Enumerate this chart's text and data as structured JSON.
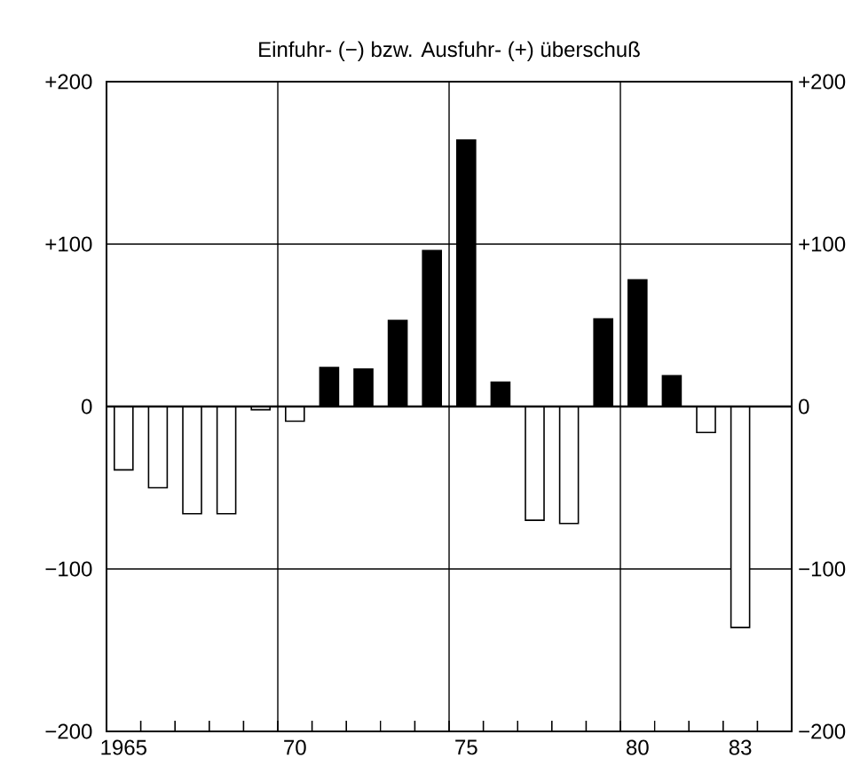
{
  "chart_data": {
    "type": "bar",
    "title": "Einfuhr- (−) bzw. Ausfuhr- (+) überschuß",
    "x": [
      1965,
      1966,
      1967,
      1968,
      1969,
      1970,
      1971,
      1972,
      1973,
      1974,
      1975,
      1976,
      1977,
      1978,
      1979,
      1980,
      1981,
      1982,
      1983
    ],
    "values": [
      -39,
      -50,
      -66,
      -66,
      -2,
      -9,
      24,
      23,
      53,
      96,
      164,
      15,
      -70,
      -72,
      54,
      78,
      19,
      -16,
      -136
    ],
    "colors": [
      "#ffffff",
      "#ffffff",
      "#ffffff",
      "#ffffff",
      "#ffffff",
      "#ffffff",
      "#000000",
      "#000000",
      "#000000",
      "#000000",
      "#000000",
      "#000000",
      "#ffffff",
      "#ffffff",
      "#000000",
      "#000000",
      "#000000",
      "#ffffff",
      "#ffffff"
    ],
    "xlim": [
      1964.5,
      1984.5
    ],
    "xticks": [
      1965,
      {
        "value": 1970,
        "label": "70"
      },
      {
        "value": 1975,
        "label": "75"
      },
      {
        "value": 1980,
        "label": "80"
      },
      {
        "value": 1983,
        "label": "83"
      },
      {
        "value": 1965.5,
        "label": null
      },
      {
        "value": 1966.5,
        "label": null
      },
      {
        "value": 1967.5,
        "label": null
      },
      {
        "value": 1968.5,
        "label": null
      },
      {
        "value": 1969.5,
        "label": null
      },
      {
        "value": 1970.5,
        "label": null
      },
      {
        "value": 1971.5,
        "label": null
      },
      {
        "value": 1972.5,
        "label": null
      },
      {
        "value": 1973.5,
        "label": null
      },
      {
        "value": 1974.5,
        "label": null
      },
      {
        "value": 1975.5,
        "label": null
      },
      {
        "value": 1976.5,
        "label": null
      },
      {
        "value": 1977.5,
        "label": null
      },
      {
        "value": 1978.5,
        "label": null
      },
      {
        "value": 1979.5,
        "label": null
      },
      {
        "value": 1980.5,
        "label": null
      },
      {
        "value": 1981.5,
        "label": null
      },
      {
        "value": 1982.5,
        "label": null
      },
      {
        "value": 1983.5,
        "label": null
      }
    ],
    "ylim": [
      -200,
      200
    ],
    "yticks": [
      {
        "value": -200,
        "label": "−200"
      },
      {
        "value": -100,
        "label": "−100"
      },
      0,
      {
        "value": 100,
        "label": "+100"
      },
      {
        "value": 200,
        "label": "+200"
      }
    ],
    "y2lim": [
      -200,
      200
    ],
    "y2ticks": [
      {
        "value": -200,
        "label": "−200"
      },
      {
        "value": -100,
        "label": "−100"
      },
      0,
      {
        "value": 100,
        "label": "+100"
      },
      {
        "value": 200,
        "label": "+200"
      }
    ],
    "ref_lines": [
      {
        "axis": "x",
        "value": 1969.5
      },
      {
        "axis": "x",
        "value": 1974.5
      },
      {
        "axis": "x",
        "value": 1979.5
      }
    ],
    "grid": "y"
  }
}
